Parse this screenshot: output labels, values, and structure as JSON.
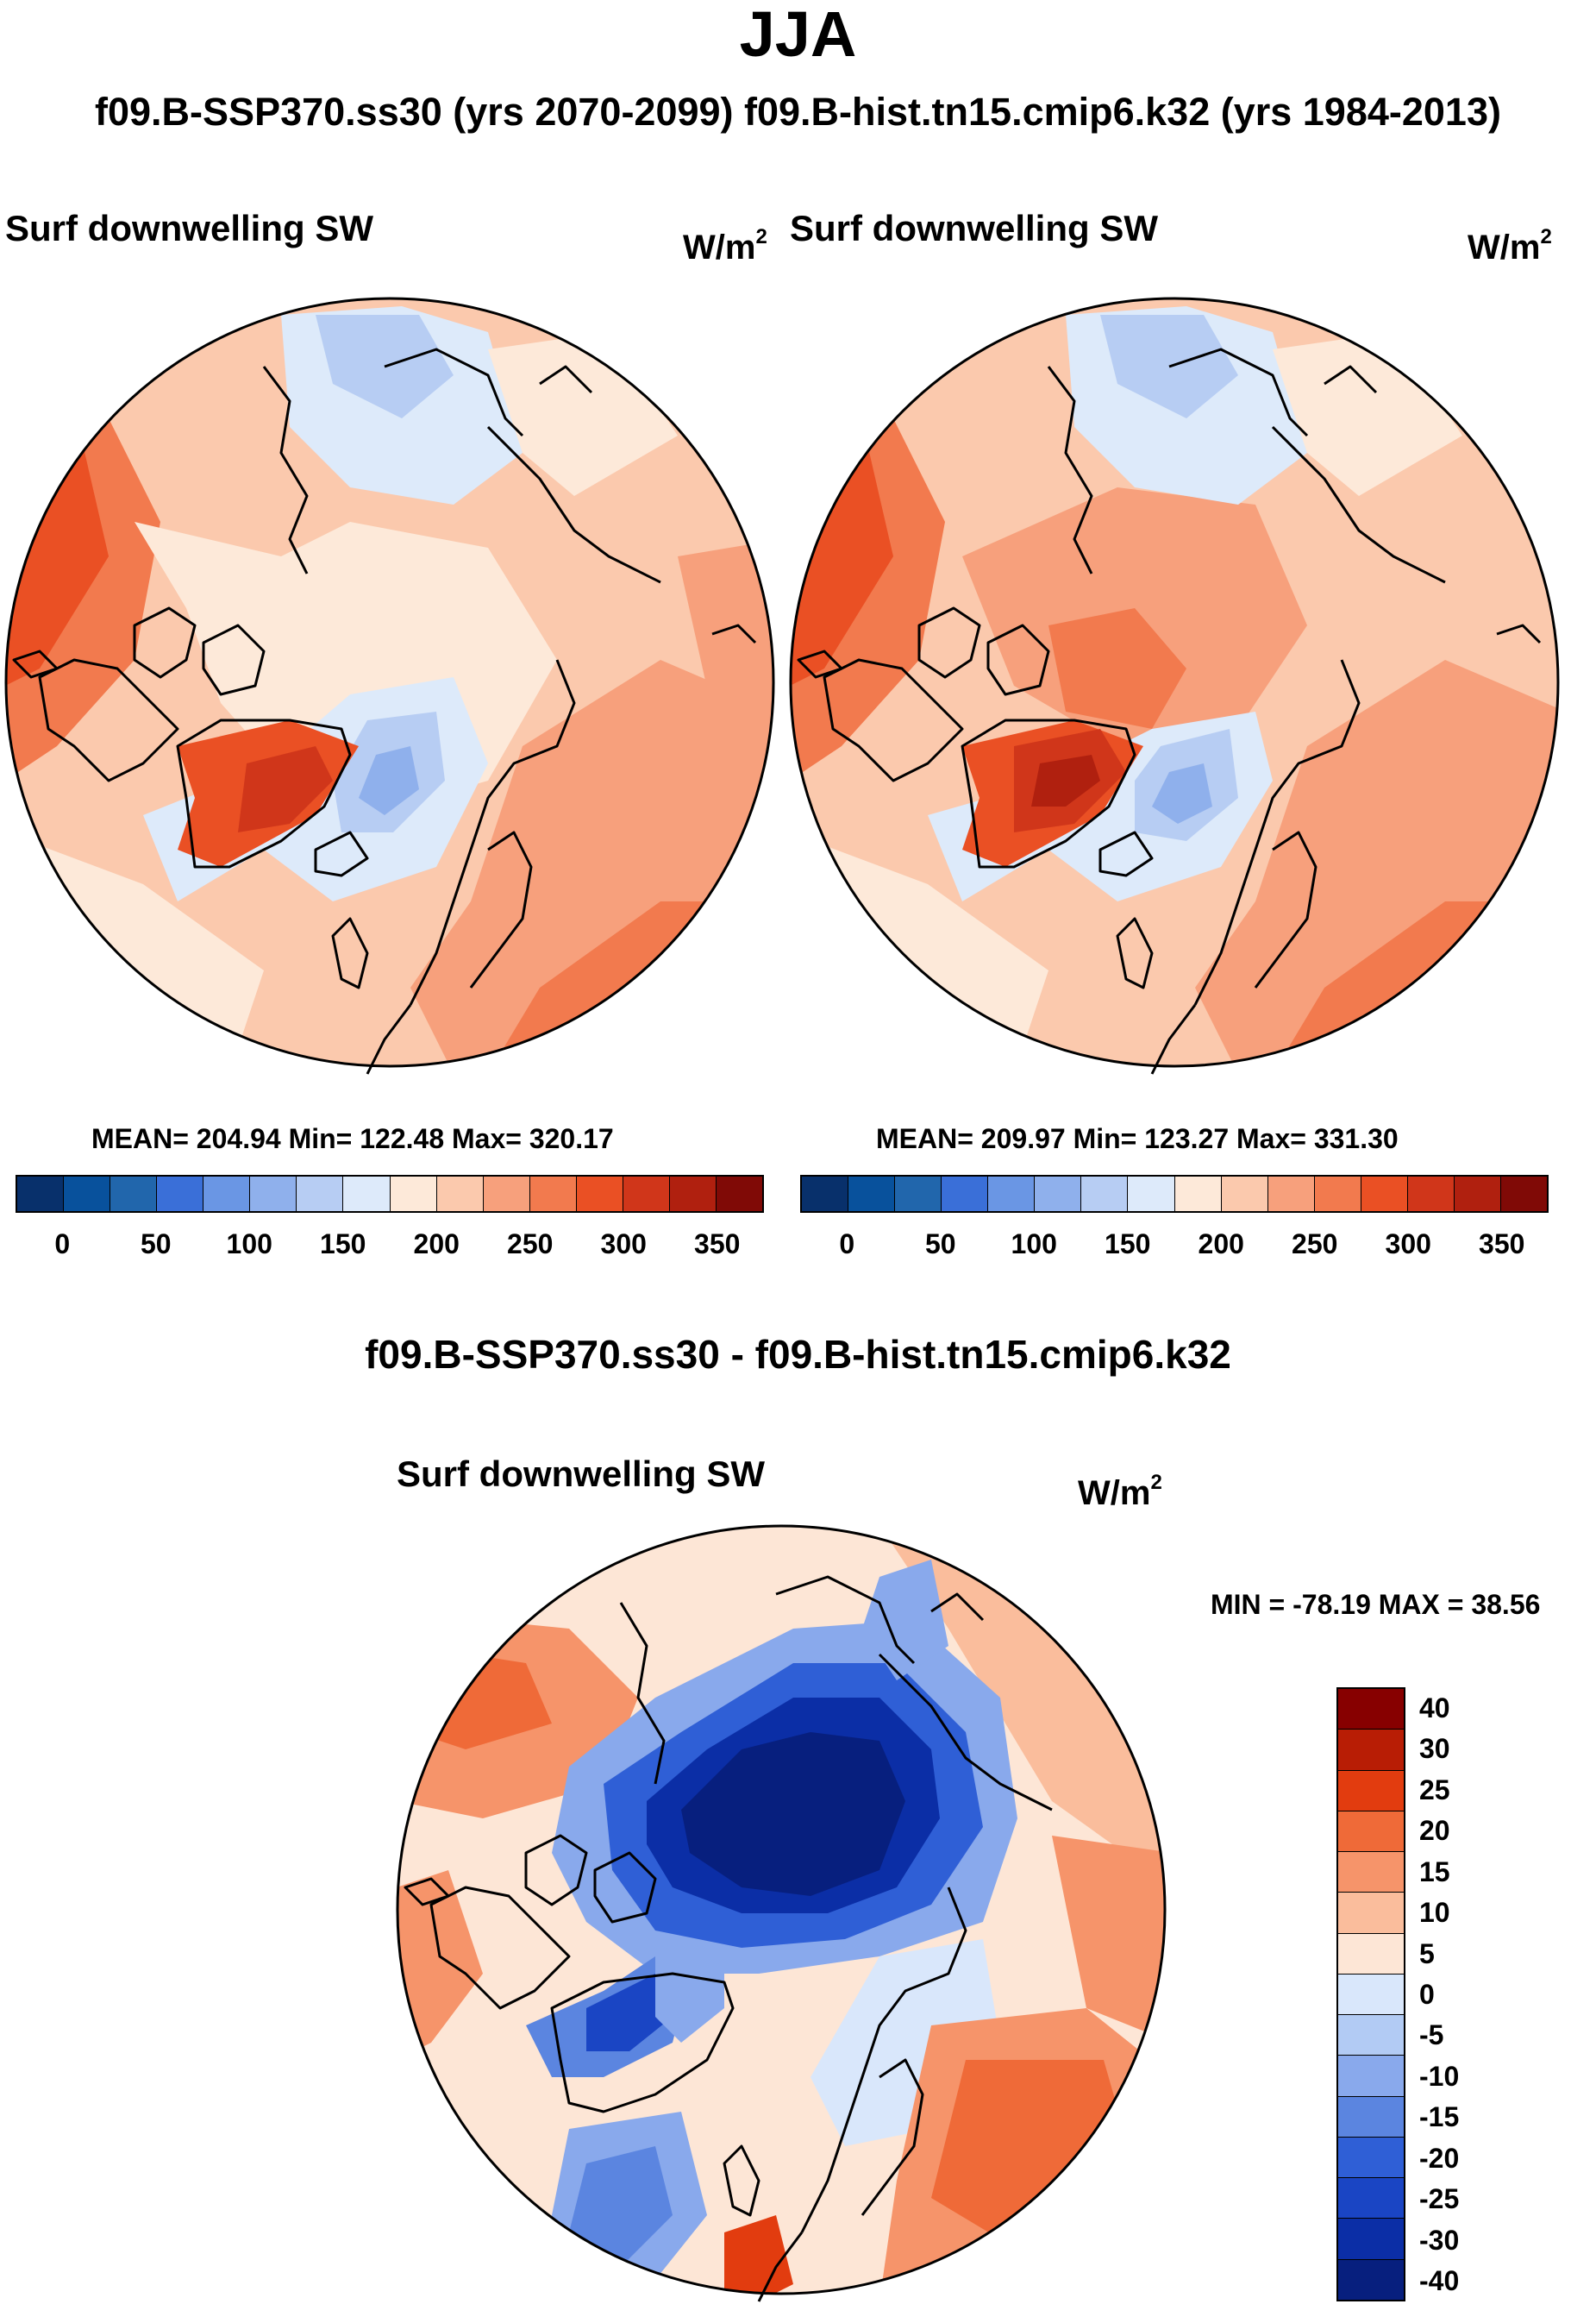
{
  "header": {
    "season": "JJA",
    "subtitle": "f09.B-SSP370.ss30 (yrs 2070-2099)  f09.B-hist.tn15.cmip6.k32 (yrs 1984-2013)"
  },
  "panels": [
    {
      "variable": "Surf downwelling SW",
      "units_base": "W/m",
      "units_exp": "2",
      "stats": "MEAN= 204.94  Min= 122.48  Max= 320.17"
    },
    {
      "variable": "Surf downwelling SW",
      "units_base": "W/m",
      "units_exp": "2",
      "stats": "MEAN= 209.97  Min= 123.27  Max= 331.30"
    }
  ],
  "abs_colorbar": {
    "colors": [
      "#08306b",
      "#08519c",
      "#2166ac",
      "#3a6fd8",
      "#6a96e4",
      "#8fb0ec",
      "#b7cdf3",
      "#ddeafa",
      "#fde9d9",
      "#fbc9ad",
      "#f7a07c",
      "#f27a4e",
      "#ea5024",
      "#d0361a",
      "#b0200f",
      "#800a06"
    ],
    "tick_labels": [
      "0",
      "50",
      "100",
      "150",
      "200",
      "250",
      "300",
      "350"
    ]
  },
  "diff": {
    "title": "f09.B-SSP370.ss30 - f09.B-hist.tn15.cmip6.k32",
    "variable": "Surf downwelling SW",
    "units_base": "W/m",
    "units_exp": "2",
    "minmax": "MIN = -78.19 MAX =  38.56",
    "colorbar": {
      "colors_top_to_bottom": [
        "#870000",
        "#b81d05",
        "#e23c0f",
        "#ef6a38",
        "#f6946a",
        "#fabd9c",
        "#fde6d6",
        "#d9e7fb",
        "#b2cbf4",
        "#89a9ec",
        "#5b85e0",
        "#2f5fd6",
        "#1a45c4",
        "#0b2ea6",
        "#071f7e"
      ],
      "tick_labels": [
        "40",
        "30",
        "25",
        "20",
        "15",
        "10",
        "5",
        "0",
        "-5",
        "-10",
        "-15",
        "-20",
        "-25",
        "-30",
        "-40"
      ]
    }
  }
}
